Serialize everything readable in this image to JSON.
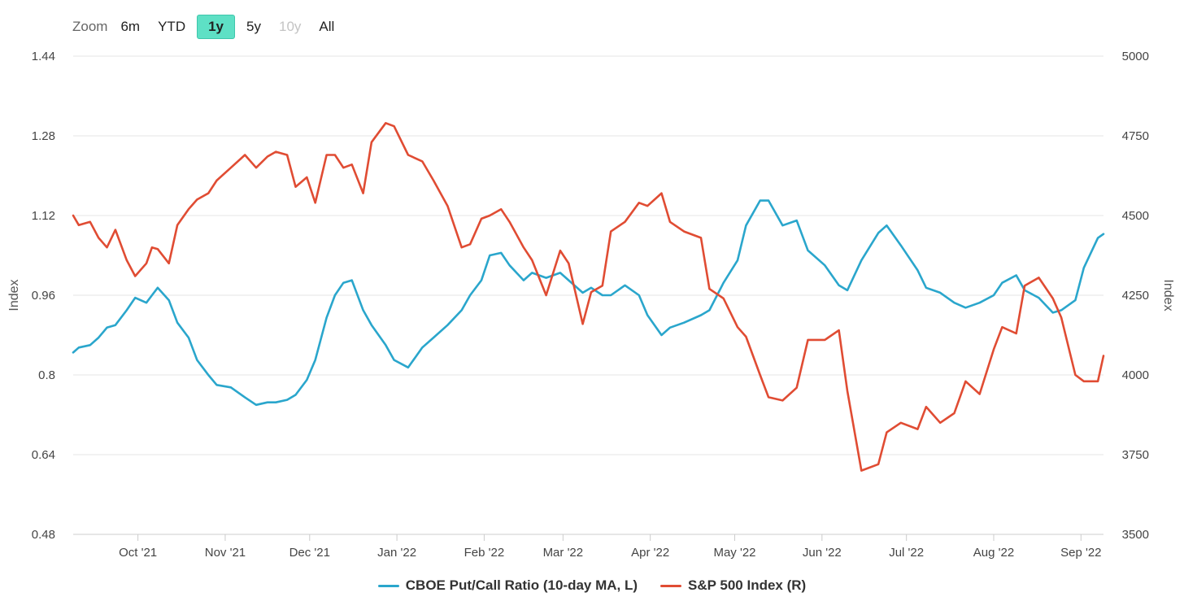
{
  "zoom": {
    "label": "Zoom",
    "buttons": [
      {
        "label": "6m",
        "state": "normal"
      },
      {
        "label": "YTD",
        "state": "normal"
      },
      {
        "label": "1y",
        "state": "active"
      },
      {
        "label": "5y",
        "state": "normal"
      },
      {
        "label": "10y",
        "state": "disabled"
      },
      {
        "label": "All",
        "state": "normal"
      }
    ]
  },
  "colors": {
    "putcall": "#2aa6cc",
    "sp500": "#e04c33",
    "grid": "#e6e6e6",
    "accent": "#5ee0c5"
  },
  "chart_data": {
    "type": "line",
    "x_type": "date",
    "xlim": [
      "2021-09-08",
      "2022-09-09"
    ],
    "x_ticks": [
      {
        "date": "2021-10-01",
        "label": "Oct '21"
      },
      {
        "date": "2021-11-01",
        "label": "Nov '21"
      },
      {
        "date": "2021-12-01",
        "label": "Dec '21"
      },
      {
        "date": "2022-01-01",
        "label": "Jan '22"
      },
      {
        "date": "2022-02-01",
        "label": "Feb '22"
      },
      {
        "date": "2022-03-01",
        "label": "Mar '22"
      },
      {
        "date": "2022-04-01",
        "label": "Apr '22"
      },
      {
        "date": "2022-05-01",
        "label": "May '22"
      },
      {
        "date": "2022-06-01",
        "label": "Jun '22"
      },
      {
        "date": "2022-07-01",
        "label": "Jul '22"
      },
      {
        "date": "2022-08-01",
        "label": "Aug '22"
      },
      {
        "date": "2022-09-01",
        "label": "Sep '22"
      }
    ],
    "y_left": {
      "title": "Index",
      "ylim": [
        0.48,
        1.44
      ],
      "ticks": [
        "0.48",
        "0.64",
        "0.8",
        "0.96",
        "1.12",
        "1.28",
        "1.44"
      ]
    },
    "y_right": {
      "title": "Index",
      "ylim": [
        3500,
        5000
      ],
      "ticks": [
        "3500",
        "3750",
        "4000",
        "4250",
        "4500",
        "4750",
        "5000"
      ]
    },
    "grid": true,
    "legend": "bottom-center",
    "series": [
      {
        "name": "CBOE Put/Call Ratio (10-day MA, L)",
        "axis": "left",
        "color": "#2aa6cc",
        "x": [
          "2021-09-08",
          "2021-09-10",
          "2021-09-14",
          "2021-09-17",
          "2021-09-20",
          "2021-09-23",
          "2021-09-27",
          "2021-09-30",
          "2021-10-04",
          "2021-10-06",
          "2021-10-08",
          "2021-10-12",
          "2021-10-15",
          "2021-10-19",
          "2021-10-22",
          "2021-10-26",
          "2021-10-29",
          "2021-11-03",
          "2021-11-08",
          "2021-11-12",
          "2021-11-16",
          "2021-11-19",
          "2021-11-23",
          "2021-11-26",
          "2021-11-30",
          "2021-12-03",
          "2021-12-07",
          "2021-12-10",
          "2021-12-13",
          "2021-12-16",
          "2021-12-20",
          "2021-12-23",
          "2021-12-28",
          "2021-12-31",
          "2022-01-05",
          "2022-01-10",
          "2022-01-14",
          "2022-01-19",
          "2022-01-24",
          "2022-01-27",
          "2022-01-31",
          "2022-02-03",
          "2022-02-07",
          "2022-02-10",
          "2022-02-15",
          "2022-02-18",
          "2022-02-23",
          "2022-02-28",
          "2022-03-03",
          "2022-03-08",
          "2022-03-11",
          "2022-03-15",
          "2022-03-18",
          "2022-03-23",
          "2022-03-28",
          "2022-03-31",
          "2022-04-05",
          "2022-04-08",
          "2022-04-13",
          "2022-04-19",
          "2022-04-22",
          "2022-04-27",
          "2022-05-02",
          "2022-05-05",
          "2022-05-10",
          "2022-05-13",
          "2022-05-18",
          "2022-05-23",
          "2022-05-27",
          "2022-06-02",
          "2022-06-07",
          "2022-06-10",
          "2022-06-15",
          "2022-06-21",
          "2022-06-24",
          "2022-06-29",
          "2022-07-05",
          "2022-07-08",
          "2022-07-13",
          "2022-07-18",
          "2022-07-22",
          "2022-07-27",
          "2022-08-01",
          "2022-08-04",
          "2022-08-09",
          "2022-08-12",
          "2022-08-17",
          "2022-08-22",
          "2022-08-25",
          "2022-08-30",
          "2022-09-02",
          "2022-09-07",
          "2022-09-09"
        ],
        "values": [
          0.845,
          0.855,
          0.86,
          0.875,
          0.895,
          0.9,
          0.93,
          0.955,
          0.945,
          0.96,
          0.975,
          0.95,
          0.905,
          0.875,
          0.83,
          0.8,
          0.78,
          0.775,
          0.755,
          0.74,
          0.745,
          0.745,
          0.75,
          0.76,
          0.79,
          0.83,
          0.915,
          0.96,
          0.985,
          0.99,
          0.93,
          0.9,
          0.86,
          0.83,
          0.815,
          0.855,
          0.875,
          0.9,
          0.93,
          0.96,
          0.99,
          1.04,
          1.045,
          1.02,
          0.99,
          1.005,
          0.995,
          1.005,
          0.99,
          0.965,
          0.975,
          0.96,
          0.96,
          0.98,
          0.96,
          0.92,
          0.88,
          0.895,
          0.905,
          0.92,
          0.93,
          0.985,
          1.03,
          1.1,
          1.15,
          1.15,
          1.1,
          1.11,
          1.05,
          1.02,
          0.98,
          0.97,
          1.03,
          1.085,
          1.1,
          1.06,
          1.01,
          0.975,
          0.965,
          0.945,
          0.935,
          0.945,
          0.96,
          0.985,
          1.0,
          0.97,
          0.955,
          0.925,
          0.93,
          0.95,
          1.015,
          1.075,
          1.083
        ]
      },
      {
        "name": "S&P 500 Index (R)",
        "axis": "right",
        "color": "#e04c33",
        "x": [
          "2021-09-08",
          "2021-09-10",
          "2021-09-14",
          "2021-09-17",
          "2021-09-20",
          "2021-09-23",
          "2021-09-27",
          "2021-09-30",
          "2021-10-04",
          "2021-10-06",
          "2021-10-08",
          "2021-10-12",
          "2021-10-15",
          "2021-10-19",
          "2021-10-22",
          "2021-10-26",
          "2021-10-29",
          "2021-11-03",
          "2021-11-08",
          "2021-11-12",
          "2021-11-16",
          "2021-11-19",
          "2021-11-23",
          "2021-11-26",
          "2021-11-30",
          "2021-12-03",
          "2021-12-07",
          "2021-12-10",
          "2021-12-13",
          "2021-12-16",
          "2021-12-20",
          "2021-12-23",
          "2021-12-28",
          "2021-12-31",
          "2022-01-05",
          "2022-01-10",
          "2022-01-14",
          "2022-01-19",
          "2022-01-24",
          "2022-01-27",
          "2022-01-31",
          "2022-02-03",
          "2022-02-07",
          "2022-02-10",
          "2022-02-15",
          "2022-02-18",
          "2022-02-23",
          "2022-02-28",
          "2022-03-03",
          "2022-03-08",
          "2022-03-11",
          "2022-03-15",
          "2022-03-18",
          "2022-03-23",
          "2022-03-28",
          "2022-03-31",
          "2022-04-05",
          "2022-04-08",
          "2022-04-13",
          "2022-04-19",
          "2022-04-22",
          "2022-04-27",
          "2022-05-02",
          "2022-05-05",
          "2022-05-10",
          "2022-05-13",
          "2022-05-18",
          "2022-05-23",
          "2022-05-27",
          "2022-06-02",
          "2022-06-07",
          "2022-06-10",
          "2022-06-15",
          "2022-06-21",
          "2022-06-24",
          "2022-06-29",
          "2022-07-05",
          "2022-07-08",
          "2022-07-13",
          "2022-07-18",
          "2022-07-22",
          "2022-07-27",
          "2022-08-01",
          "2022-08-04",
          "2022-08-09",
          "2022-08-12",
          "2022-08-17",
          "2022-08-22",
          "2022-08-25",
          "2022-08-30",
          "2022-09-02",
          "2022-09-07",
          "2022-09-09"
        ],
        "values": [
          4500,
          4470,
          4480,
          4430,
          4400,
          4455,
          4360,
          4310,
          4350,
          4400,
          4395,
          4350,
          4470,
          4520,
          4550,
          4570,
          4610,
          4650,
          4690,
          4650,
          4685,
          4700,
          4690,
          4590,
          4620,
          4540,
          4690,
          4690,
          4650,
          4660,
          4570,
          4730,
          4790,
          4780,
          4690,
          4670,
          4610,
          4530,
          4400,
          4410,
          4490,
          4500,
          4520,
          4480,
          4400,
          4360,
          4250,
          4390,
          4350,
          4160,
          4260,
          4280,
          4450,
          4480,
          4540,
          4530,
          4570,
          4480,
          4450,
          4430,
          4270,
          4240,
          4150,
          4120,
          4000,
          3930,
          3920,
          3960,
          4110,
          4110,
          4140,
          3950,
          3700,
          3720,
          3820,
          3850,
          3830,
          3900,
          3850,
          3880,
          3980,
          3940,
          4080,
          4150,
          4130,
          4280,
          4305,
          4240,
          4180,
          4000,
          3980,
          3980,
          4060
        ]
      }
    ]
  },
  "legend": {
    "items": [
      {
        "label": "CBOE Put/Call Ratio (10-day MA, L)"
      },
      {
        "label": "S&P 500 Index (R)"
      }
    ]
  }
}
